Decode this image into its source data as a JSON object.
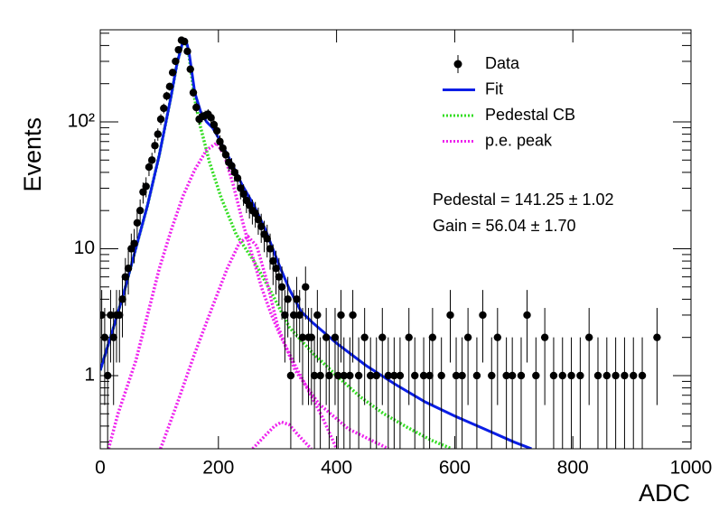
{
  "chart_data": {
    "type": "scatter",
    "ylog": true,
    "xlabel": "ADC",
    "ylabel": "Events",
    "xlim": [
      0,
      1000
    ],
    "ylim": [
      0.265,
      532
    ],
    "xticks": [
      0,
      200,
      400,
      600,
      800,
      1000
    ],
    "yticks": [
      1,
      10,
      {
        "value": 100,
        "label": "10²"
      }
    ],
    "yminorticks": [
      0.3,
      0.4,
      0.5,
      0.6,
      0.7,
      0.8,
      0.9,
      2,
      3,
      4,
      5,
      6,
      7,
      8,
      9,
      20,
      30,
      40,
      50,
      60,
      70,
      80,
      90,
      200,
      300,
      400,
      500
    ],
    "legend": "top-right",
    "annotations": [
      "Pedestal = 141.25 ± 1.02",
      "Gain = 56.04 ± 1.70"
    ],
    "series": [
      {
        "name": "Data",
        "color": "#000000",
        "kind": "points",
        "x": [
          2.5,
          7.5,
          12.5,
          17.5,
          22.5,
          27.5,
          32.5,
          37.5,
          42.5,
          47.5,
          52.5,
          57.5,
          62.5,
          67.5,
          72.5,
          77.5,
          82.5,
          87.5,
          92.5,
          97.5,
          102.5,
          107.5,
          112.5,
          117.5,
          122.5,
          127.5,
          132.5,
          137.5,
          142.5,
          147.5,
          152.5,
          157.5,
          162.5,
          167.5,
          172.5,
          177.5,
          182.5,
          187.5,
          192.5,
          197.5,
          202.5,
          207.5,
          212.5,
          217.5,
          222.5,
          227.5,
          232.5,
          237.5,
          242.5,
          247.5,
          252.5,
          257.5,
          262.5,
          267.5,
          272.5,
          277.5,
          282.5,
          287.5,
          292.5,
          297.5,
          302.5,
          307.5,
          312.5,
          317.5,
          322.5,
          327.5,
          332.5,
          337.5,
          342.5,
          347.5,
          352.5,
          357.5,
          362.5,
          367.5,
          372.5,
          382.5,
          387.5,
          397.5,
          402.5,
          407.5,
          412.5,
          422.5,
          427.5,
          437.5,
          447.5,
          457.5,
          467.5,
          477.5,
          487.5,
          497.5,
          507.5,
          522.5,
          532.5,
          547.5,
          557.5,
          562.5,
          577.5,
          592.5,
          602.5,
          612.5,
          622.5,
          637.5,
          647.5,
          662.5,
          672.5,
          687.5,
          697.5,
          712.5,
          722.5,
          737.5,
          752.5,
          767.5,
          782.5,
          797.5,
          812.5,
          827.5,
          842.5,
          857.5,
          872.5,
          887.5,
          902.5,
          917.5,
          942.5
        ],
        "values": [
          3,
          2,
          1,
          3,
          2,
          3,
          3,
          4,
          6,
          7,
          10,
          11,
          16,
          20,
          28,
          31,
          44,
          50,
          65,
          80,
          105,
          128,
          160,
          190,
          245,
          300,
          370,
          440,
          430,
          360,
          260,
          170,
          130,
          105,
          110,
          112,
          115,
          108,
          95,
          85,
          70,
          62,
          55,
          48,
          45,
          40,
          36,
          30,
          27,
          24,
          22,
          20,
          19,
          17,
          15,
          13,
          12,
          10,
          8,
          7,
          6,
          5,
          3,
          4,
          1,
          3,
          4,
          3,
          2,
          5,
          2,
          2,
          1,
          3,
          1,
          2,
          1,
          2,
          1,
          3,
          1,
          1,
          3,
          1,
          2,
          1,
          1,
          2,
          1,
          1,
          1,
          2,
          1,
          1,
          1,
          2,
          1,
          3,
          1,
          1,
          2,
          1,
          3,
          1,
          2,
          1,
          1,
          1,
          3,
          1,
          2,
          1,
          1,
          1,
          1,
          2,
          1,
          1,
          1,
          1,
          1,
          1,
          2
        ]
      },
      {
        "name": "Fit",
        "color": "#0a1ee6",
        "kind": "line",
        "style": "solid",
        "x": [
          0,
          20,
          40,
          60,
          80,
          100,
          120,
          130,
          140,
          145,
          150,
          160,
          170,
          180,
          190,
          200,
          220,
          240,
          260,
          280,
          300,
          320,
          340,
          360,
          400,
          450,
          500,
          550,
          600,
          650,
          700,
          730
        ],
        "values": [
          1.1,
          2.2,
          4.5,
          10,
          22,
          55,
          160,
          290,
          430,
          440,
          360,
          170,
          120,
          100,
          90,
          75,
          50,
          32,
          22,
          14,
          8,
          4.8,
          3.2,
          2.6,
          1.8,
          1.2,
          0.85,
          0.62,
          0.48,
          0.38,
          0.3,
          0.265
        ]
      },
      {
        "name": "Pedestal CB",
        "color": "#33dd22",
        "kind": "line",
        "style": "dotted",
        "x": [
          0,
          20,
          40,
          60,
          80,
          100,
          120,
          130,
          140,
          145,
          150,
          160,
          170,
          185,
          205,
          230,
          260,
          290,
          320,
          360,
          400,
          440,
          480,
          520,
          560,
          595
        ],
        "values": [
          1.1,
          2.2,
          4.5,
          10,
          22,
          55,
          160,
          290,
          430,
          440,
          340,
          150,
          90,
          48,
          25,
          13,
          8,
          4.5,
          2.4,
          1.5,
          1.0,
          0.68,
          0.5,
          0.39,
          0.31,
          0.265
        ]
      },
      {
        "name": "p.e. peak",
        "color": "#ee22ee",
        "kind": "curves",
        "style": "dotted",
        "curves": [
          {
            "x": [
              14,
              30,
              60,
              80,
              100,
              120,
              140,
              160,
              180,
              197,
              210,
              225,
              243,
              260,
              274,
              290,
              304,
              330,
              350,
              375,
              400
            ],
            "values": [
              0.265,
              0.5,
              1.3,
              3,
              7,
              14,
              26,
              42,
              60,
              68,
              55,
              32,
              15,
              8,
              4.8,
              3,
              2.1,
              1.2,
              0.8,
              0.48,
              0.265
            ]
          },
          {
            "x": [
              102,
              130,
              160,
              190,
              215,
              235,
              250,
              265,
              280,
              300,
              330,
              370,
              420,
              488
            ],
            "values": [
              0.265,
              0.6,
              1.5,
              3.5,
              7,
              11,
              12.5,
              10.5,
              6,
              2.5,
              1.1,
              0.6,
              0.38,
              0.265
            ]
          },
          {
            "x": [
              258,
              280,
              295,
              307,
              320,
              335,
              357
            ],
            "values": [
              0.265,
              0.34,
              0.4,
              0.43,
              0.41,
              0.34,
              0.265
            ]
          }
        ]
      }
    ]
  }
}
